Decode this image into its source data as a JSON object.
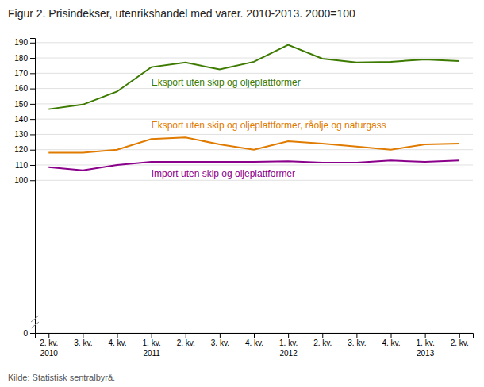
{
  "chart_data": {
    "type": "line",
    "title": "Figur 2. Prisindekser, utenrikshandel med varer. 2010-2013. 2000=100",
    "source": "Kilde: Statistisk sentralbyrå.",
    "categories": [
      "2. kv.\n2010",
      "3. kv.",
      "4. kv.",
      "1. kv.\n2011",
      "2. kv.",
      "3. kv.",
      "4. kv.",
      "1. kv.\n2012",
      "2. kv.",
      "3. kv.",
      "4. kv.",
      "1. kv.\n2013",
      "2. kv."
    ],
    "series": [
      {
        "name": "Eksport uten skip og oljeplattformer",
        "color": "#3d7a00",
        "values": [
          146.5,
          149.5,
          158.0,
          174.0,
          177.0,
          172.5,
          177.5,
          188.5,
          179.5,
          177.0,
          177.5,
          179.0,
          178.0
        ]
      },
      {
        "name": "Eksport uten skip og oljeplattformer, råolje og naturgass",
        "color": "#e07b00",
        "values": [
          118.0,
          118.0,
          120.0,
          127.0,
          128.0,
          123.5,
          120.0,
          125.5,
          124.0,
          122.0,
          120.0,
          123.5,
          124.0
        ]
      },
      {
        "name": "Import uten skip og oljeplattformer",
        "color": "#8b008b",
        "values": [
          108.5,
          106.5,
          110.0,
          112.0,
          112.0,
          112.0,
          112.0,
          112.5,
          111.5,
          111.5,
          113.0,
          112.0,
          113.0
        ]
      }
    ],
    "ylim": [
      0,
      193
    ],
    "yticks": [
      0,
      100,
      110,
      120,
      130,
      140,
      150,
      160,
      170,
      180,
      190
    ],
    "grid": true
  }
}
